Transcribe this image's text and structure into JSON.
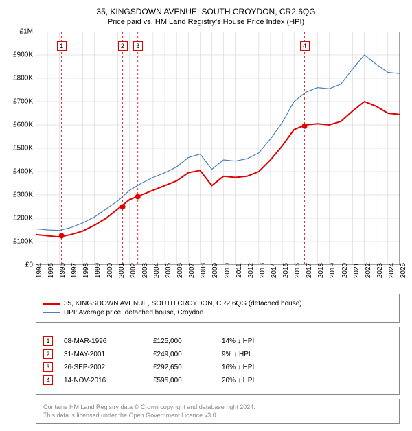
{
  "title": "35, KINGSDOWN AVENUE, SOUTH CROYDON, CR2 6QG",
  "subtitle": "Price paid vs. HM Land Registry's House Price Index (HPI)",
  "chart": {
    "type": "line",
    "background_color": "#ffffff",
    "grid_color": "#cccccc",
    "border_color": "#444444",
    "xlim": [
      1994,
      2025
    ],
    "ylim": [
      0,
      1000000
    ],
    "ytick_step": 100000,
    "ytick_prefix": "£",
    "ytick_labels": [
      "£0",
      "£100K",
      "£200K",
      "£300K",
      "£400K",
      "£500K",
      "£600K",
      "£700K",
      "£800K",
      "£900K",
      "£1M"
    ],
    "xticks": [
      1994,
      1995,
      1996,
      1997,
      1998,
      1999,
      2000,
      2001,
      2002,
      2003,
      2004,
      2005,
      2006,
      2007,
      2008,
      2009,
      2010,
      2011,
      2012,
      2013,
      2014,
      2015,
      2016,
      2017,
      2018,
      2019,
      2020,
      2021,
      2022,
      2023,
      2024,
      2025
    ],
    "series": [
      {
        "name": "35, KINGSDOWN AVENUE, SOUTH CROYDON, CR2 6QG (detached house)",
        "color": "#e00000",
        "line_width": 2,
        "data": [
          [
            1994,
            130000
          ],
          [
            1995,
            125000
          ],
          [
            1996,
            120000
          ],
          [
            1997,
            130000
          ],
          [
            1998,
            145000
          ],
          [
            1999,
            170000
          ],
          [
            2000,
            200000
          ],
          [
            2001,
            240000
          ],
          [
            2002,
            280000
          ],
          [
            2003,
            300000
          ],
          [
            2004,
            320000
          ],
          [
            2005,
            340000
          ],
          [
            2006,
            360000
          ],
          [
            2007,
            395000
          ],
          [
            2008,
            405000
          ],
          [
            2009,
            340000
          ],
          [
            2010,
            380000
          ],
          [
            2011,
            375000
          ],
          [
            2012,
            380000
          ],
          [
            2013,
            400000
          ],
          [
            2014,
            450000
          ],
          [
            2015,
            510000
          ],
          [
            2016,
            580000
          ],
          [
            2017,
            600000
          ],
          [
            2018,
            605000
          ],
          [
            2019,
            600000
          ],
          [
            2020,
            615000
          ],
          [
            2021,
            660000
          ],
          [
            2022,
            700000
          ],
          [
            2023,
            680000
          ],
          [
            2024,
            650000
          ],
          [
            2025,
            645000
          ]
        ]
      },
      {
        "name": "HPI: Average price, detached house, Croydon",
        "color": "#4a7ebb",
        "line_width": 1.2,
        "data": [
          [
            1994,
            155000
          ],
          [
            1995,
            150000
          ],
          [
            1996,
            148000
          ],
          [
            1997,
            160000
          ],
          [
            1998,
            180000
          ],
          [
            1999,
            205000
          ],
          [
            2000,
            240000
          ],
          [
            2001,
            275000
          ],
          [
            2002,
            320000
          ],
          [
            2003,
            350000
          ],
          [
            2004,
            375000
          ],
          [
            2005,
            395000
          ],
          [
            2006,
            420000
          ],
          [
            2007,
            460000
          ],
          [
            2008,
            475000
          ],
          [
            2009,
            410000
          ],
          [
            2010,
            450000
          ],
          [
            2011,
            445000
          ],
          [
            2012,
            455000
          ],
          [
            2013,
            480000
          ],
          [
            2014,
            540000
          ],
          [
            2015,
            610000
          ],
          [
            2016,
            700000
          ],
          [
            2017,
            740000
          ],
          [
            2018,
            760000
          ],
          [
            2019,
            755000
          ],
          [
            2020,
            775000
          ],
          [
            2021,
            840000
          ],
          [
            2022,
            900000
          ],
          [
            2023,
            860000
          ],
          [
            2024,
            825000
          ],
          [
            2025,
            820000
          ]
        ]
      }
    ],
    "sale_markers": [
      {
        "x": 1996.2,
        "y": 125000,
        "color": "#e00000"
      },
      {
        "x": 2001.4,
        "y": 249000,
        "color": "#e00000"
      },
      {
        "x": 2002.7,
        "y": 292650,
        "color": "#e00000"
      },
      {
        "x": 2016.9,
        "y": 595000,
        "color": "#e00000"
      }
    ],
    "event_lines": [
      {
        "x": 1996.2,
        "label": "1",
        "color": "#e00000",
        "dash": "3,3"
      },
      {
        "x": 2001.4,
        "label": "2",
        "color": "#e00000",
        "dash": "3,3"
      },
      {
        "x": 2002.7,
        "label": "3",
        "color": "#e00000",
        "dash": "3,3"
      },
      {
        "x": 2016.9,
        "label": "4",
        "color": "#e00000",
        "dash": "3,3"
      }
    ]
  },
  "legend": {
    "items": [
      {
        "label": "35, KINGSDOWN AVENUE, SOUTH CROYDON, CR2 6QG (detached house)",
        "color": "#e00000",
        "line_width": 2
      },
      {
        "label": "HPI: Average price, detached house, Croydon",
        "color": "#4a7ebb",
        "line_width": 1.2
      }
    ]
  },
  "annotations": [
    {
      "num": "1",
      "date": "08-MAR-1996",
      "price": "£125,000",
      "delta": "14% ↓ HPI",
      "marker_color": "#e00000"
    },
    {
      "num": "2",
      "date": "31-MAY-2001",
      "price": "£249,000",
      "delta": "9% ↓ HPI",
      "marker_color": "#e00000"
    },
    {
      "num": "3",
      "date": "26-SEP-2002",
      "price": "£292,650",
      "delta": "16% ↓ HPI",
      "marker_color": "#e00000"
    },
    {
      "num": "4",
      "date": "14-NOV-2016",
      "price": "£595,000",
      "delta": "20% ↓ HPI",
      "marker_color": "#e00000"
    }
  ],
  "footer": {
    "line1": "Contains HM Land Registry data © Crown copyright and database right 2024.",
    "line2": "This data is licensed under the Open Government Licence v3.0."
  }
}
